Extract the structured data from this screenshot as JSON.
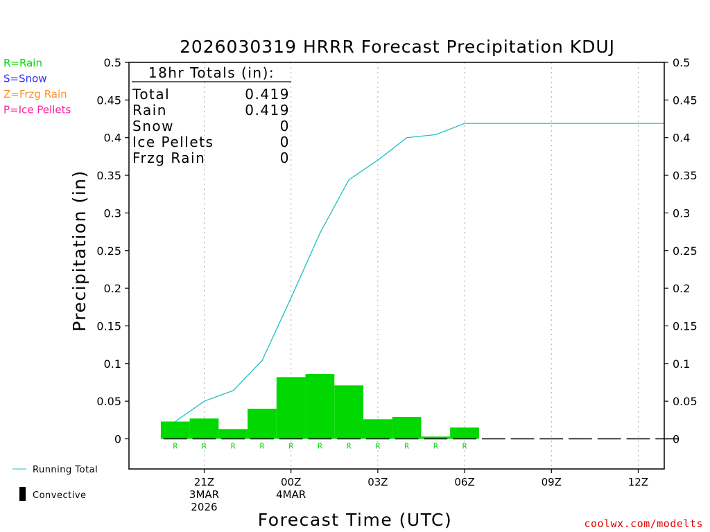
{
  "chart_data": {
    "type": "bar",
    "title": "2026030319 HRRR Forecast Precipitation KDUJ",
    "xlabel": "Forecast Time (UTC)",
    "ylabel": "Precipitation (in)",
    "ylim": [
      -0.04,
      0.5
    ],
    "yticks": [
      0,
      0.05,
      0.1,
      0.15,
      0.2,
      0.25,
      0.3,
      0.35,
      0.4,
      0.45,
      0.5
    ],
    "ytick_labels": [
      "0",
      "0.05",
      "0.1",
      "0.15",
      "0.2",
      "0.25",
      "0.3",
      "0.35",
      "0.4",
      "0.45",
      "0.5"
    ],
    "xlim_hours": [
      -0.6,
      17.9
    ],
    "xticks": [
      {
        "hour": 2,
        "lines": [
          "21Z",
          "3MAR",
          "2026"
        ]
      },
      {
        "hour": 5,
        "lines": [
          "00Z",
          "4MAR"
        ]
      },
      {
        "hour": 8,
        "lines": [
          "03Z"
        ]
      },
      {
        "hour": 11,
        "lines": [
          "06Z"
        ]
      },
      {
        "hour": 14,
        "lines": [
          "09Z"
        ]
      },
      {
        "hour": 17,
        "lines": [
          "12Z"
        ]
      }
    ],
    "bars": {
      "name": "Hourly Precipitation",
      "hours": [
        1,
        2,
        3,
        4,
        5,
        6,
        7,
        8,
        9,
        10,
        11,
        12,
        13,
        14,
        15,
        16,
        17,
        18
      ],
      "values": [
        0.023,
        0.027,
        0.013,
        0.04,
        0.082,
        0.086,
        0.071,
        0.026,
        0.029,
        0.003,
        0.015,
        0,
        0,
        0,
        0,
        0,
        0,
        0
      ],
      "ptype": [
        "R",
        "R",
        "R",
        "R",
        "R",
        "R",
        "R",
        "R",
        "R",
        "R",
        "R",
        "",
        "",
        "",
        "",
        "",
        "",
        ""
      ],
      "color": "#00d800"
    },
    "running_total": {
      "name": "Running Total",
      "hours": [
        1,
        2,
        3,
        4,
        5,
        6,
        7,
        8,
        9,
        10,
        11,
        12,
        13,
        14,
        15,
        16,
        17,
        18
      ],
      "values": [
        0.023,
        0.05,
        0.064,
        0.104,
        0.187,
        0.273,
        0.344,
        0.37,
        0.4,
        0.404,
        0.419,
        0.419,
        0.419,
        0.419,
        0.419,
        0.419,
        0.419,
        0.419
      ],
      "color": "#20c0c0"
    },
    "totals_box": {
      "header": "18hr Totals (in):",
      "rows": [
        {
          "label": "Total",
          "value": "0.419"
        },
        {
          "label": "Rain",
          "value": "0.419"
        },
        {
          "label": "Snow",
          "value": "0"
        },
        {
          "label": "Ice Pellets",
          "value": "0"
        },
        {
          "label": "Frzg Rain",
          "value": "0"
        }
      ]
    },
    "ptype_legend": [
      {
        "text": "R=Rain",
        "color": "#00d800"
      },
      {
        "text": "S=Snow",
        "color": "#3030ff"
      },
      {
        "text": "Z=Frzg Rain",
        "color": "#ff9020"
      },
      {
        "text": "P=Ice Pellets",
        "color": "#ff20a0"
      }
    ],
    "series_legend": {
      "running_total": "Running Total",
      "convective": "Convective"
    },
    "credit": "coolwx.com/modelts"
  }
}
